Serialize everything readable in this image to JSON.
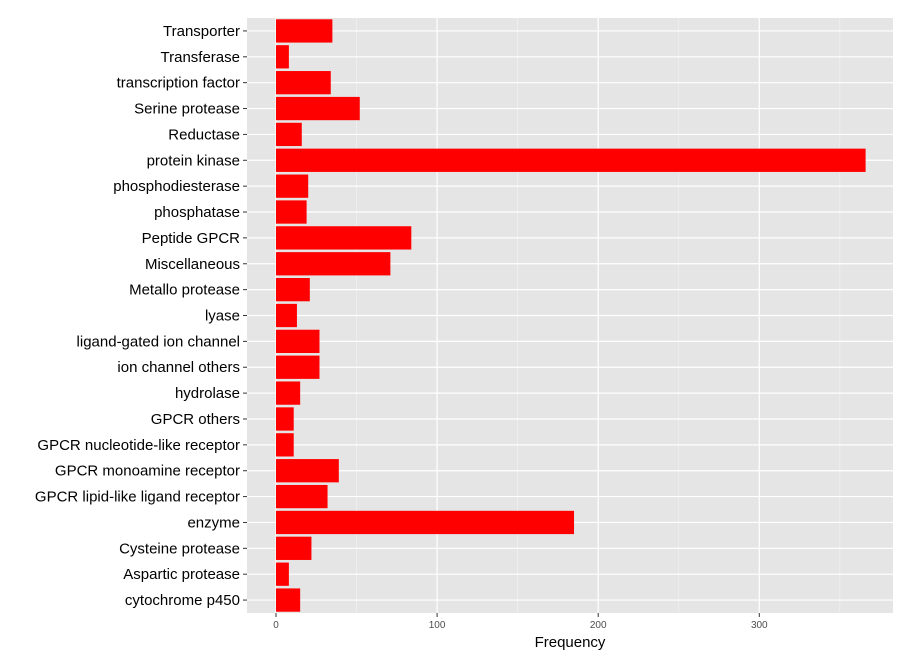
{
  "chart_data": {
    "type": "bar",
    "orientation": "horizontal",
    "categories": [
      "Transporter",
      "Transferase",
      "transcription factor",
      "Serine protease",
      "Reductase",
      "protein kinase",
      "phosphodiesterase",
      "phosphatase",
      "Peptide GPCR",
      "Miscellaneous",
      "Metallo protease",
      "lyase",
      "ligand-gated ion channel",
      "ion channel others",
      "hydrolase",
      "GPCR others",
      "GPCR nucleotide-like receptor",
      "GPCR monoamine receptor",
      "GPCR  lipid-like ligand receptor",
      "enzyme",
      "Cysteine protease",
      "Aspartic protease",
      "cytochrome p450"
    ],
    "values": [
      35,
      8,
      34,
      52,
      16,
      366,
      20,
      19,
      84,
      71,
      21,
      13,
      27,
      27,
      15,
      11,
      11,
      39,
      32,
      185,
      22,
      8,
      15
    ],
    "xlabel": "Frequency",
    "ylabel": "",
    "xlim": [
      -18,
      383
    ],
    "xticks": [
      0,
      100,
      200,
      300
    ],
    "grid": true,
    "bar_color": "#ff0000",
    "panel_color": "#e5e5e5",
    "grid_color": "#ffffff"
  }
}
